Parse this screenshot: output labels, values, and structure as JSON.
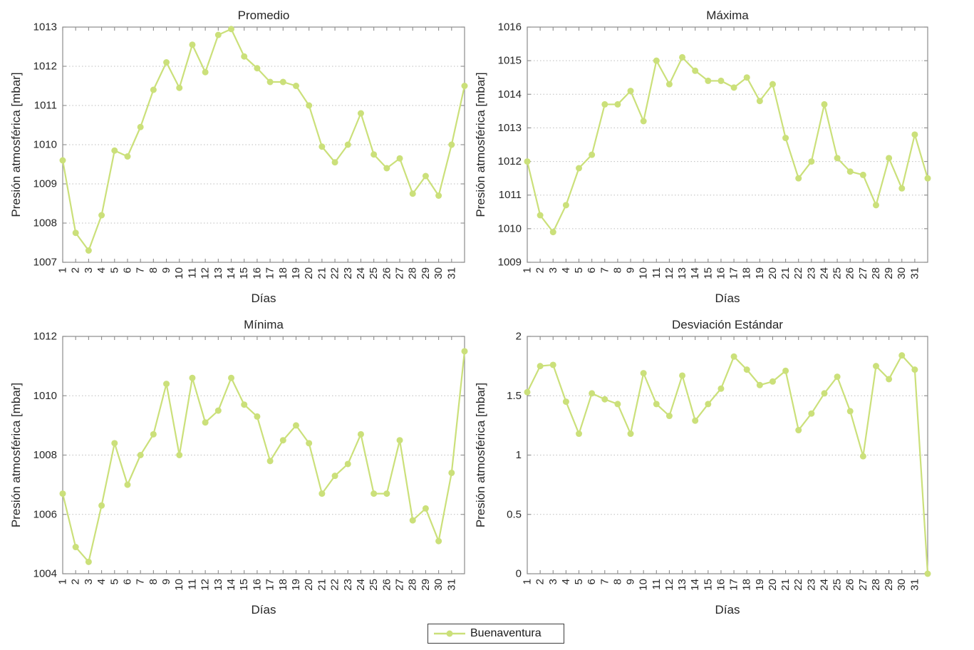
{
  "legend": {
    "label": "Buenaventura"
  },
  "colors": {
    "series": "#cbe07a",
    "grid": "#bdbdbd",
    "axis": "#8c8c8c",
    "text": "#262626"
  },
  "chart_data": [
    {
      "type": "line",
      "title": "Promedio",
      "xlabel": "Días",
      "ylabel": "Presión atmosférica [mbar]",
      "ylim": [
        1007,
        1013
      ],
      "yticks": [
        1007,
        1008,
        1009,
        1010,
        1011,
        1012,
        1013
      ],
      "xlim": [
        1,
        32
      ],
      "xticks": [
        1,
        2,
        3,
        4,
        5,
        6,
        7,
        8,
        9,
        10,
        11,
        12,
        13,
        14,
        15,
        16,
        17,
        18,
        19,
        20,
        21,
        22,
        23,
        24,
        25,
        26,
        27,
        28,
        29,
        30,
        31
      ],
      "grid": "horizontal-dotted",
      "series": [
        {
          "name": "Buenaventura",
          "x": [
            1,
            2,
            3,
            4,
            5,
            6,
            7,
            8,
            9,
            10,
            11,
            12,
            13,
            14,
            15,
            16,
            17,
            18,
            19,
            20,
            21,
            22,
            23,
            24,
            25,
            26,
            27,
            28,
            29,
            30,
            31,
            32
          ],
          "y": [
            1009.6,
            1007.75,
            1007.3,
            1008.2,
            1009.85,
            1009.7,
            1010.45,
            1011.4,
            1012.1,
            1011.45,
            1012.55,
            1011.85,
            1012.8,
            1012.95,
            1012.25,
            1011.95,
            1011.6,
            1011.6,
            1011.5,
            1011.0,
            1009.95,
            1009.55,
            1010.0,
            1010.8,
            1009.75,
            1009.4,
            1009.65,
            1008.75,
            1009.2,
            1008.7,
            1010.0,
            1011.5
          ]
        }
      ]
    },
    {
      "type": "line",
      "title": "Máxima",
      "xlabel": "Días",
      "ylabel": "Presión atmosférica [mbar]",
      "ylim": [
        1009,
        1016
      ],
      "yticks": [
        1009,
        1010,
        1011,
        1012,
        1013,
        1014,
        1015,
        1016
      ],
      "xlim": [
        1,
        32
      ],
      "xticks": [
        1,
        2,
        3,
        4,
        5,
        6,
        7,
        8,
        9,
        10,
        11,
        12,
        13,
        14,
        15,
        16,
        17,
        18,
        19,
        20,
        21,
        22,
        23,
        24,
        25,
        26,
        27,
        28,
        29,
        30,
        31
      ],
      "grid": "horizontal-dotted",
      "series": [
        {
          "name": "Buenaventura",
          "x": [
            1,
            2,
            3,
            4,
            5,
            6,
            7,
            8,
            9,
            10,
            11,
            12,
            13,
            14,
            15,
            16,
            17,
            18,
            19,
            20,
            21,
            22,
            23,
            24,
            25,
            26,
            27,
            28,
            29,
            30,
            31,
            32
          ],
          "y": [
            1012.0,
            1010.4,
            1009.9,
            1010.7,
            1011.8,
            1012.2,
            1013.7,
            1013.7,
            1014.1,
            1013.2,
            1015.0,
            1014.3,
            1015.1,
            1014.7,
            1014.4,
            1014.4,
            1014.2,
            1014.5,
            1013.8,
            1014.3,
            1012.7,
            1011.5,
            1012.0,
            1013.7,
            1012.1,
            1011.7,
            1011.6,
            1010.7,
            1012.1,
            1011.2,
            1012.8,
            1011.5
          ]
        }
      ]
    },
    {
      "type": "line",
      "title": "Mínima",
      "xlabel": "Días",
      "ylabel": "Presión atmosférica [mbar]",
      "ylim": [
        1004,
        1012
      ],
      "yticks": [
        1004,
        1006,
        1008,
        1010,
        1012
      ],
      "xlim": [
        1,
        32
      ],
      "xticks": [
        1,
        2,
        3,
        4,
        5,
        6,
        7,
        8,
        9,
        10,
        11,
        12,
        13,
        14,
        15,
        16,
        17,
        18,
        19,
        20,
        21,
        22,
        23,
        24,
        25,
        26,
        27,
        28,
        29,
        30,
        31
      ],
      "grid": "horizontal-dotted",
      "series": [
        {
          "name": "Buenaventura",
          "x": [
            1,
            2,
            3,
            4,
            5,
            6,
            7,
            8,
            9,
            10,
            11,
            12,
            13,
            14,
            15,
            16,
            17,
            18,
            19,
            20,
            21,
            22,
            23,
            24,
            25,
            26,
            27,
            28,
            29,
            30,
            31,
            32
          ],
          "y": [
            1006.7,
            1004.9,
            1004.4,
            1006.3,
            1008.4,
            1007.0,
            1008.0,
            1008.7,
            1010.4,
            1008.0,
            1010.6,
            1009.1,
            1009.5,
            1010.6,
            1009.7,
            1009.3,
            1007.8,
            1008.5,
            1009.0,
            1008.4,
            1006.7,
            1007.3,
            1007.7,
            1008.7,
            1006.7,
            1006.7,
            1008.5,
            1005.8,
            1006.2,
            1005.1,
            1007.4,
            1011.5
          ]
        }
      ]
    },
    {
      "type": "line",
      "title": "Desviación Estándar",
      "xlabel": "Días",
      "ylabel": "Presión atmosférica [mbar]",
      "ylim": [
        0,
        2
      ],
      "yticks": [
        0,
        0.5,
        1,
        1.5,
        2
      ],
      "xlim": [
        1,
        32
      ],
      "xticks": [
        1,
        2,
        3,
        4,
        5,
        6,
        7,
        8,
        9,
        10,
        11,
        12,
        13,
        14,
        15,
        16,
        17,
        18,
        19,
        20,
        21,
        22,
        23,
        24,
        25,
        26,
        27,
        28,
        29,
        30,
        31
      ],
      "grid": "horizontal-dotted",
      "series": [
        {
          "name": "Buenaventura",
          "x": [
            1,
            2,
            3,
            4,
            5,
            6,
            7,
            8,
            9,
            10,
            11,
            12,
            13,
            14,
            15,
            16,
            17,
            18,
            19,
            20,
            21,
            22,
            23,
            24,
            25,
            26,
            27,
            28,
            29,
            30,
            31,
            32
          ],
          "y": [
            1.53,
            1.75,
            1.76,
            1.45,
            1.18,
            1.52,
            1.47,
            1.43,
            1.18,
            1.69,
            1.43,
            1.33,
            1.67,
            1.29,
            1.43,
            1.56,
            1.83,
            1.72,
            1.59,
            1.62,
            1.71,
            1.21,
            1.35,
            1.52,
            1.66,
            1.37,
            0.99,
            1.75,
            1.64,
            1.84,
            1.72,
            0.0
          ]
        }
      ]
    }
  ]
}
